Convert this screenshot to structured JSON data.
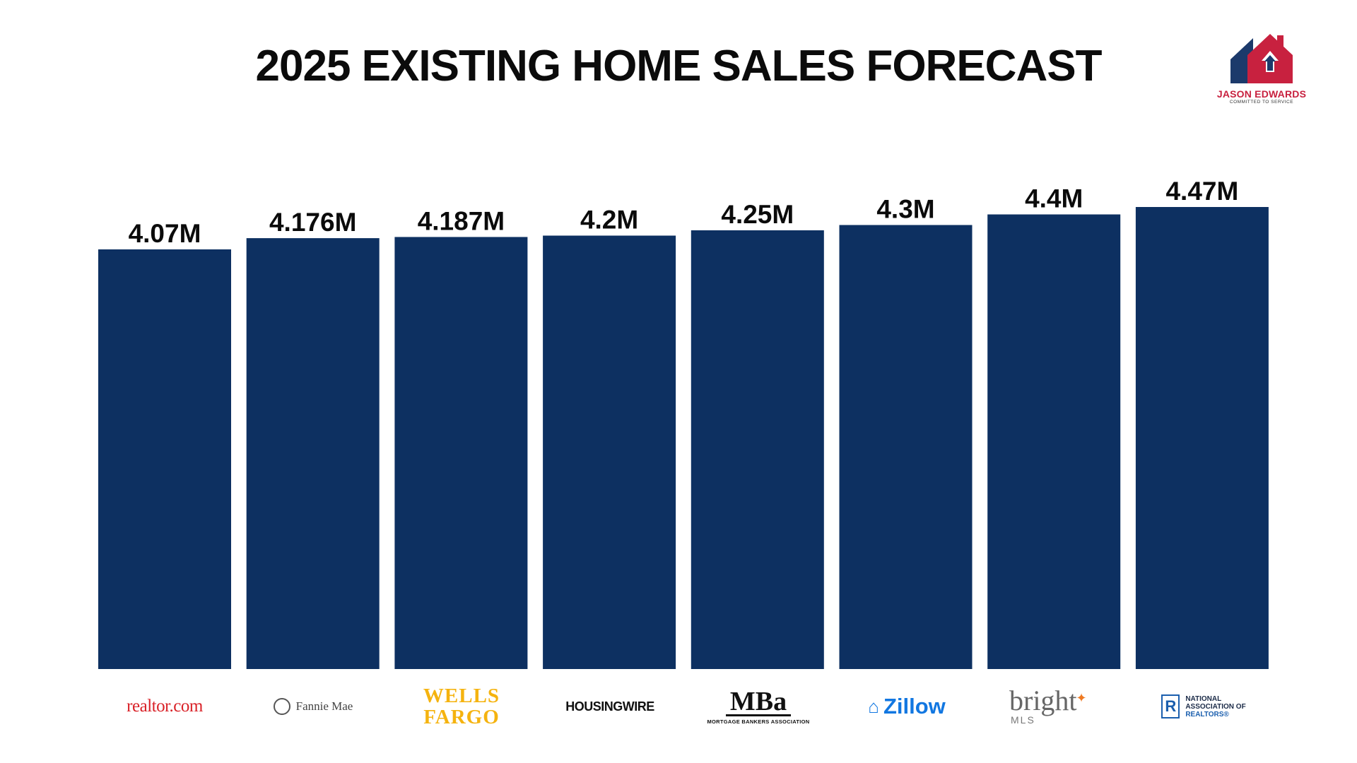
{
  "header": {
    "title": "2025 EXISTING HOME SALES FORECAST",
    "brand_name": "JASON EDWARDS",
    "brand_tagline": "COMMITTED TO SERVICE"
  },
  "colors": {
    "bar": "#0d3061",
    "brand_red": "#c8213f",
    "brand_navy": "#1c3a6b"
  },
  "chart_data": {
    "type": "bar",
    "title": "2025 EXISTING HOME SALES FORECAST",
    "xlabel": "",
    "ylabel": "",
    "grid": false,
    "legend": "none",
    "categories": [
      "realtor.com",
      "Fannie Mae",
      "Wells Fargo",
      "HousingWire",
      "MBA",
      "Zillow",
      "Bright MLS",
      "National Association of REALTORS"
    ],
    "values": [
      4.07,
      4.176,
      4.187,
      4.2,
      4.25,
      4.3,
      4.4,
      4.47
    ],
    "value_labels": [
      "4.07M",
      "4.176M",
      "4.187M",
      "4.2M",
      "4.25M",
      "4.3M",
      "4.4M",
      "4.47M"
    ],
    "unit": "M"
  },
  "logos": {
    "realtor": "realtor.com",
    "fannie": "Fannie Mae",
    "wells_line1": "WELLS",
    "wells_line2": "FARGO",
    "housingwire": "HOUSINGWIRE",
    "mba_big": "MBa",
    "mba_small": "MORTGAGE BANKERS ASSOCIATION",
    "zillow": "Zillow",
    "bright_word": "bright",
    "bright_mls": "MLS",
    "nar_line1": "NATIONAL",
    "nar_line2": "ASSOCIATION OF",
    "nar_line3": "REALTORS®"
  }
}
